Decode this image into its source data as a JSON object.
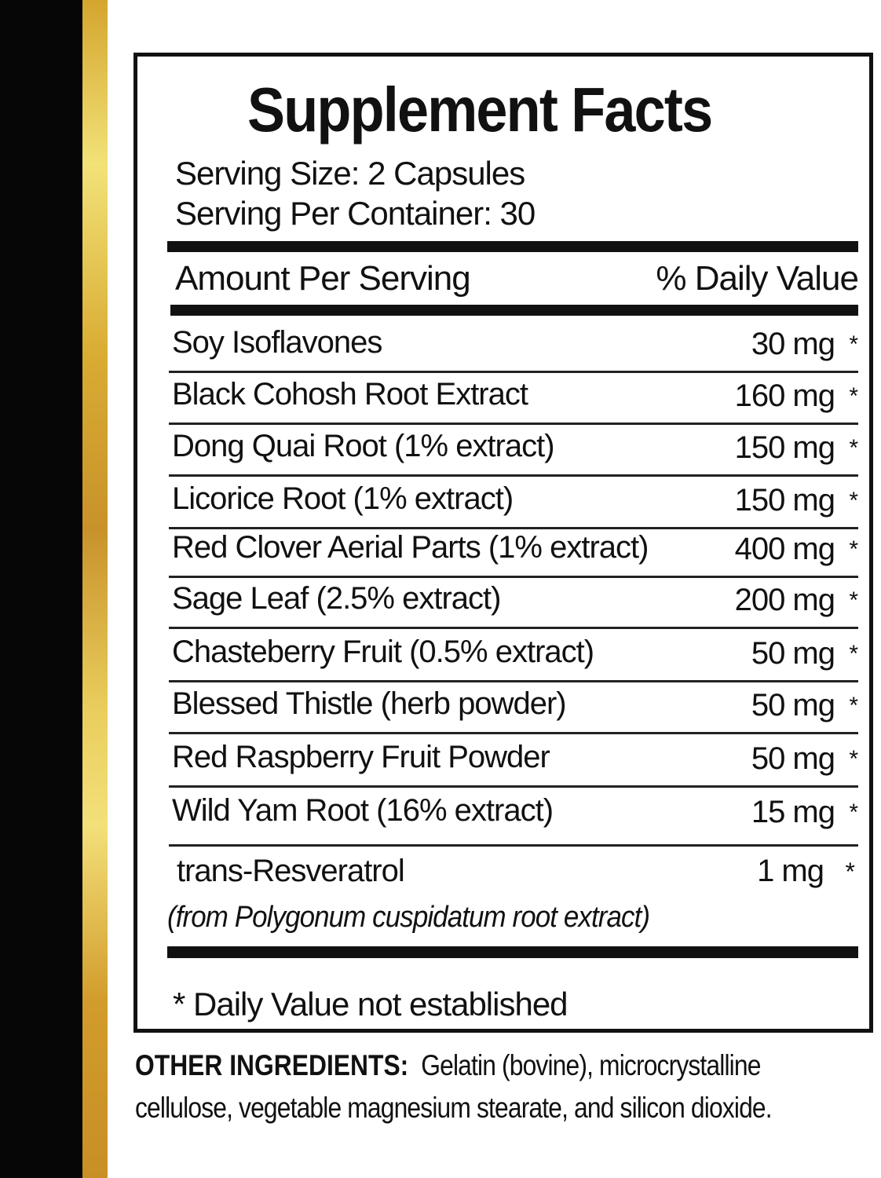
{
  "title": "Supplement Facts",
  "serving_size": "Serving Size: 2 Capsules",
  "servings_per_container": "Serving Per Container: 30",
  "header": {
    "left": "Amount Per Serving",
    "right": "% Daily Value"
  },
  "ingredients": [
    {
      "name": "Soy Isoflavones",
      "amount": "30 mg",
      "dv": "*"
    },
    {
      "name": "Black Cohosh Root Extract",
      "amount": "160 mg",
      "dv": "*"
    },
    {
      "name": "Dong Quai Root (1% extract)",
      "amount": "150 mg",
      "dv": "*"
    },
    {
      "name": "Licorice Root (1% extract)",
      "amount": "150 mg",
      "dv": "*"
    },
    {
      "name": "Red Clover Aerial Parts (1% extract)",
      "amount": "400 mg",
      "dv": "*"
    },
    {
      "name": "Sage Leaf (2.5% extract)",
      "amount": "200 mg",
      "dv": "*"
    },
    {
      "name": "Chasteberry Fruit (0.5% extract)",
      "amount": "50 mg",
      "dv": "*"
    },
    {
      "name": "Blessed Thistle (herb powder)",
      "amount": "50 mg",
      "dv": "*"
    },
    {
      "name": "Red Raspberry Fruit Powder",
      "amount": "50 mg",
      "dv": "*"
    },
    {
      "name": "Wild Yam Root (16% extract)",
      "amount": "15 mg",
      "dv": "*"
    }
  ],
  "last_ingredient": {
    "name": "trans-Resveratrol",
    "amount": "1 mg",
    "dv": "*",
    "source": "(from Polygonum cuspidatum root extract)"
  },
  "footnote": "* Daily Value not established",
  "other_ingredients": {
    "label": "OTHER  INGREDIENTS:",
    "text": "Gelatin (bovine), microcrystalline cellulose, vegetable magnesium stearate, and silicon dioxide."
  },
  "colors": {
    "gold": "#e9cd5c",
    "black": "#060606"
  }
}
